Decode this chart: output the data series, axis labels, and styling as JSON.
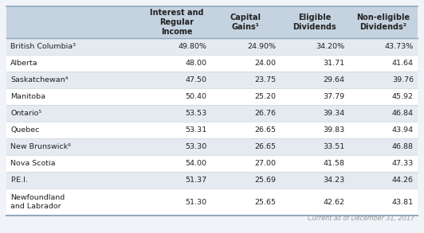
{
  "col_headers": [
    "Interest and\nRegular\nIncome",
    "Capital\nGains¹",
    "Eligible\nDividends",
    "Non-eligible\nDividends²"
  ],
  "rows": [
    {
      "province": "British Columbia³",
      "values": [
        "49.80%",
        "24.90%",
        "34.20%",
        "43.73%"
      ],
      "shaded": true
    },
    {
      "province": "Alberta",
      "values": [
        "48.00",
        "24.00",
        "31.71",
        "41.64"
      ],
      "shaded": false
    },
    {
      "province": "Saskatchewan⁴",
      "values": [
        "47.50",
        "23.75",
        "29.64",
        "39.76"
      ],
      "shaded": true
    },
    {
      "province": "Manitoba",
      "values": [
        "50.40",
        "25.20",
        "37.79",
        "45.92"
      ],
      "shaded": false
    },
    {
      "province": "Ontario⁵",
      "values": [
        "53.53",
        "26.76",
        "39.34",
        "46.84"
      ],
      "shaded": true
    },
    {
      "province": "Quebec",
      "values": [
        "53.31",
        "26.65",
        "39.83",
        "43.94"
      ],
      "shaded": false
    },
    {
      "province": "New Brunswick⁶",
      "values": [
        "53.30",
        "26.65",
        "33.51",
        "46.88"
      ],
      "shaded": true
    },
    {
      "province": "Nova Scotia",
      "values": [
        "54.00",
        "27.00",
        "41.58",
        "47.33"
      ],
      "shaded": false
    },
    {
      "province": "P.E.I.",
      "values": [
        "51.37",
        "25.69",
        "34.23",
        "44.26"
      ],
      "shaded": true
    },
    {
      "province": "Newfoundland\nand Labrador",
      "values": [
        "51.30",
        "25.65",
        "42.62",
        "43.81"
      ],
      "shaded": false
    }
  ],
  "header_bg": "#c5d3e0",
  "shaded_bg": "#e4eaf0",
  "white_bg": "#ffffff",
  "footer_text": "Current as of December 31, 2017",
  "footer_color": "#999999",
  "text_color": "#222222",
  "border_top_color": "#8da8bf",
  "border_row_color": "#c8d4de",
  "border_bottom_color": "#8da8bf",
  "outer_bg": "#f0f3f7",
  "header_fontsize": 7.0,
  "data_fontsize": 6.8
}
